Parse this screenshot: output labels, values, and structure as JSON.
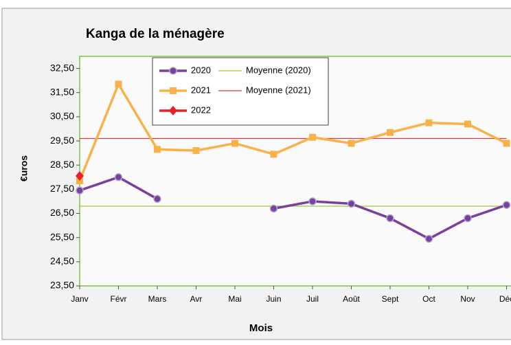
{
  "chart_data": {
    "type": "line",
    "title": "Kanga de la ménagère",
    "x_label": "Mois",
    "y_label": "€uros",
    "categories": [
      "Janv",
      "Févr",
      "Mars",
      "Avr",
      "Mai",
      "Juin",
      "Juil",
      "Août",
      "Sept",
      "Oct",
      "Nov",
      "Déc"
    ],
    "series": [
      {
        "name": "2020",
        "color": "#7b3f9e",
        "marker": "circle",
        "values": [
          27.45,
          28.0,
          27.1,
          null,
          null,
          26.7,
          27.0,
          26.9,
          26.3,
          25.45,
          26.3,
          26.85
        ]
      },
      {
        "name": "2021",
        "color": "#f9b14a",
        "marker": "square",
        "values": [
          27.85,
          31.85,
          29.15,
          29.1,
          29.4,
          28.95,
          29.65,
          29.4,
          29.85,
          30.25,
          30.2,
          29.4
        ]
      },
      {
        "name": "2022",
        "color": "#e8202a",
        "marker": "diamond",
        "values": [
          28.05,
          null,
          null,
          null,
          null,
          null,
          null,
          null,
          null,
          null,
          null,
          null
        ]
      },
      {
        "name": "Moyenne (2020)",
        "color": "#99cc33",
        "marker": "none",
        "values": [
          26.8,
          26.8,
          26.8,
          26.8,
          26.8,
          26.8,
          26.8,
          26.8,
          26.8,
          26.8,
          26.8,
          26.8
        ]
      },
      {
        "name": "Moyenne (2021)",
        "color": "#d63a3a",
        "marker": "none",
        "values": [
          29.6,
          29.6,
          29.6,
          29.6,
          29.6,
          29.6,
          29.6,
          29.6,
          29.6,
          29.6,
          29.6,
          29.6
        ]
      }
    ],
    "ylim": [
      23.5,
      33
    ],
    "yticks": [
      {
        "value": 23.5,
        "label": "23,50"
      },
      {
        "value": 24.5,
        "label": "24,50"
      },
      {
        "value": 25.5,
        "label": "25,50"
      },
      {
        "value": 26.5,
        "label": "26,50"
      },
      {
        "value": 27.5,
        "label": "27,50"
      },
      {
        "value": 28.5,
        "label": "28,50"
      },
      {
        "value": 29.5,
        "label": "29,50"
      },
      {
        "value": 30.5,
        "label": "30,50"
      },
      {
        "value": 31.5,
        "label": "31,50"
      },
      {
        "value": 32.5,
        "label": "32,50"
      }
    ],
    "grid": false,
    "legend": "top"
  }
}
